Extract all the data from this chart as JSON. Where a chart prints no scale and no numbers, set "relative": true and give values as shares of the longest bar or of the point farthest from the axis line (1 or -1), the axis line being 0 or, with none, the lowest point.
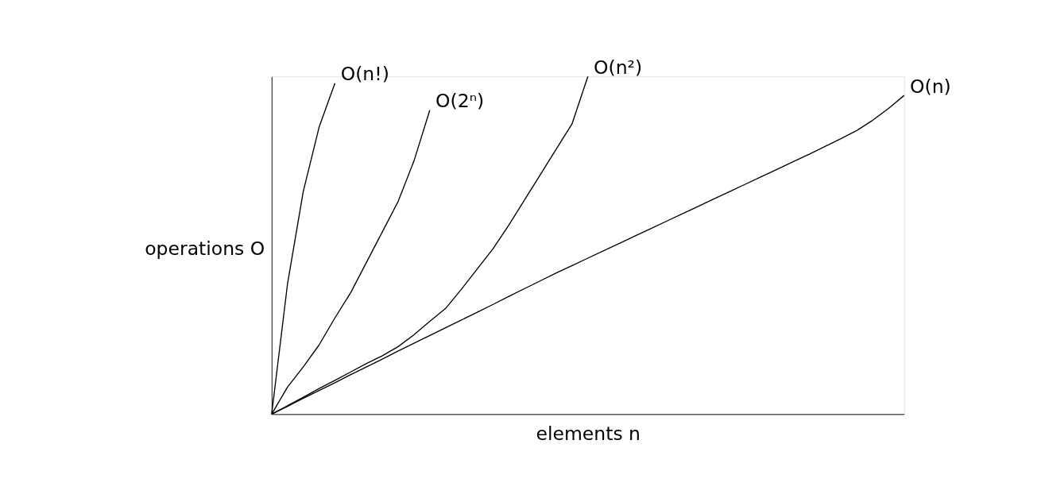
{
  "chart_data": {
    "type": "line",
    "relative": true,
    "xlabel": "elements n",
    "ylabel": "operations O",
    "tick_labels": false,
    "grid": false,
    "legend": false,
    "marker": "none",
    "line_style": "solid",
    "categories": [
      null,
      null,
      null,
      null,
      null,
      null,
      null,
      null,
      null,
      null,
      null,
      null,
      null,
      null,
      null,
      null,
      null,
      null,
      null,
      null,
      null,
      null,
      null,
      null,
      null,
      null,
      null,
      null,
      null,
      null,
      null,
      null,
      null,
      null,
      null,
      null,
      null,
      null,
      null,
      null,
      null
    ],
    "series": [
      {
        "name": "O(n!)",
        "color": "#000000",
        "values": [
          0,
          0.385,
          0.66,
          0.85,
          0.98,
          null,
          null,
          null,
          null,
          null,
          null,
          null,
          null,
          null,
          null,
          null,
          null,
          null,
          null,
          null,
          null,
          null,
          null,
          null,
          null,
          null,
          null,
          null,
          null,
          null,
          null,
          null,
          null,
          null,
          null,
          null,
          null,
          null,
          null,
          null,
          null
        ]
      },
      {
        "name": "O(2ⁿ)",
        "color": "#000000",
        "values": [
          0,
          0.08,
          0.14,
          0.205,
          0.285,
          0.36,
          0.45,
          0.54,
          0.63,
          0.75,
          0.9,
          null,
          null,
          null,
          null,
          null,
          null,
          null,
          null,
          null,
          null,
          null,
          null,
          null,
          null,
          null,
          null,
          null,
          null,
          null,
          null,
          null,
          null,
          null,
          null,
          null,
          null,
          null,
          null,
          null,
          null
        ]
      },
      {
        "name": "O(n²)",
        "color": "#000000",
        "values": [
          0,
          0.025,
          0.05,
          0.076,
          0.1,
          0.125,
          0.15,
          0.173,
          0.2,
          0.235,
          0.275,
          0.313,
          0.37,
          0.43,
          0.49,
          0.56,
          0.635,
          0.71,
          0.785,
          0.86,
          1,
          null,
          null,
          null,
          null,
          null,
          null,
          null,
          null,
          null,
          null,
          null,
          null,
          null,
          null,
          null,
          null,
          null,
          null,
          null,
          null
        ]
      },
      {
        "name": "O(n)",
        "color": "#000000",
        "values": [
          0,
          0.023,
          0.047,
          0.07,
          0.093,
          0.117,
          0.14,
          0.163,
          0.187,
          0.21,
          0.233,
          0.256,
          0.279,
          0.302,
          0.325,
          0.349,
          0.372,
          0.395,
          0.418,
          0.44,
          0.462,
          0.484,
          0.506,
          0.528,
          0.55,
          0.572,
          0.594,
          0.616,
          0.638,
          0.66,
          0.682,
          0.704,
          0.726,
          0.748,
          0.77,
          0.793,
          0.816,
          0.84,
          0.87,
          0.905,
          0.944
        ]
      }
    ]
  }
}
